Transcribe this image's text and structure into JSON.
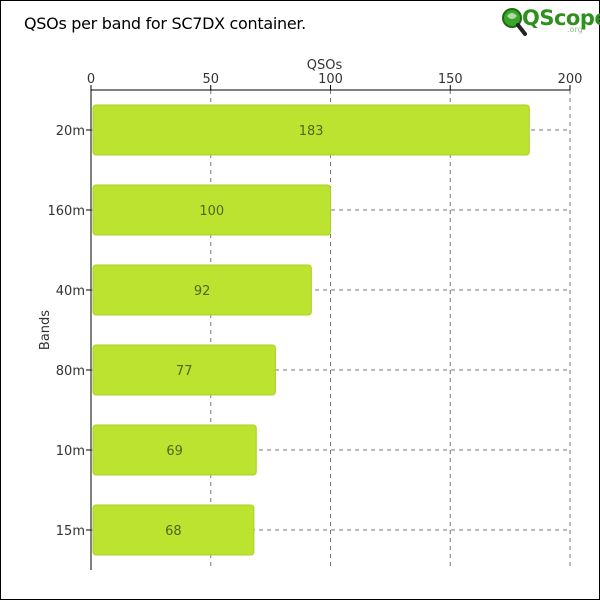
{
  "page": {
    "title": "QSOs per band for SC7DX container."
  },
  "logo": {
    "text": "QScope",
    "sub": ".org"
  },
  "colors": {
    "bar_fill": "#bde331",
    "bar_stroke": "#a7d124",
    "bar_label": "#4a6a1a",
    "grid": "#777777",
    "axis": "#000000"
  },
  "chart_data": {
    "type": "bar",
    "orientation": "horizontal",
    "categories": [
      "20m",
      "160m",
      "40m",
      "80m",
      "10m",
      "15m"
    ],
    "values": [
      183,
      100,
      92,
      77,
      69,
      68
    ],
    "xlabel": "QSOs",
    "ylabel": "Bands",
    "xlim": [
      0,
      200
    ],
    "xticks": [
      0,
      50,
      100,
      150,
      200
    ],
    "x_axis_position": "top",
    "grid": true,
    "data_labels": true
  }
}
